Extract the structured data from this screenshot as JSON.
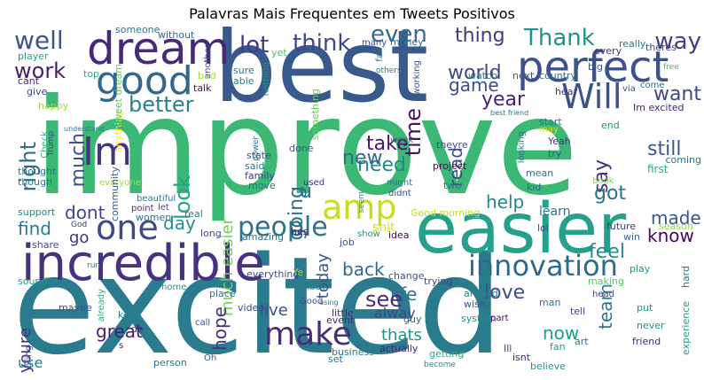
{
  "title": "Palavras Mais Frequentes em Tweets Positivos",
  "palette": [
    "#440154",
    "#46327e",
    "#365c8d",
    "#277f8e",
    "#1fa187",
    "#4ac16d",
    "#a0da39",
    "#fde725"
  ],
  "words": [
    {
      "text": "improve",
      "color": "#3bb873"
    },
    {
      "text": "excited",
      "color": "#2a7b8e"
    },
    {
      "text": "best",
      "color": "#38598c"
    },
    {
      "text": "easier",
      "color": "#25a08a"
    },
    {
      "text": "incredible",
      "color": "#46327e"
    },
    {
      "text": "perfect",
      "color": "#3b528b"
    },
    {
      "text": "dream",
      "color": "#482878"
    },
    {
      "text": "good",
      "color": "#31688e"
    },
    {
      "text": "Will",
      "color": "#3b528b"
    },
    {
      "text": "Im",
      "color": "#46337e"
    },
    {
      "text": "one",
      "color": "#3e4a89"
    },
    {
      "text": "amp",
      "color": "#c2df23"
    },
    {
      "text": "innovation",
      "color": "#30698e"
    },
    {
      "text": "make",
      "color": "#472e7c"
    },
    {
      "text": "people",
      "color": "#2c728e"
    },
    {
      "text": "well",
      "color": "#39558c"
    },
    {
      "text": "lot",
      "color": "#443983"
    },
    {
      "text": "think",
      "color": "#404688"
    },
    {
      "text": "Thank",
      "color": "#21918c"
    },
    {
      "text": "way",
      "color": "#433d84"
    },
    {
      "text": "even",
      "color": "#2f6b8e"
    },
    {
      "text": "thing",
      "color": "#443a83"
    },
    {
      "text": "work",
      "color": "#481d6f"
    },
    {
      "text": "want",
      "color": "#3e4989"
    },
    {
      "text": "better",
      "color": "#26828e"
    },
    {
      "text": "year",
      "color": "#482173"
    },
    {
      "text": "world",
      "color": "#3f4889"
    },
    {
      "text": "game",
      "color": "#3d4e8a"
    },
    {
      "text": "time",
      "color": "#471365"
    },
    {
      "text": "right",
      "color": "#2d708e"
    },
    {
      "text": "much",
      "color": "#3b528b"
    },
    {
      "text": "look",
      "color": "#22a785"
    },
    {
      "text": "going",
      "color": "#2e6e8e"
    },
    {
      "text": "much easier",
      "color": "#74d055"
    },
    {
      "text": "need",
      "color": "#24868e"
    },
    {
      "text": "take",
      "color": "#481567"
    },
    {
      "text": "read",
      "color": "#3e4a89"
    },
    {
      "text": "say",
      "color": "#472f7d"
    },
    {
      "text": "still",
      "color": "#38598c"
    },
    {
      "text": "got",
      "color": "#2b748e"
    },
    {
      "text": "help",
      "color": "#24868e"
    },
    {
      "text": "new",
      "color": "#31688e"
    },
    {
      "text": "u",
      "color": "#2c738e"
    },
    {
      "text": "shit",
      "color": "#d2e21b"
    },
    {
      "text": "dont",
      "color": "#404688"
    },
    {
      "text": "find",
      "color": "#29798e"
    },
    {
      "text": "day",
      "color": "#20928c"
    },
    {
      "text": "go",
      "color": "#46317e"
    },
    {
      "text": "made",
      "color": "#3a548c"
    },
    {
      "text": "know",
      "color": "#46075a"
    },
    {
      "text": "feel",
      "color": "#238a8d"
    },
    {
      "text": "life",
      "color": "#2d718e"
    },
    {
      "text": "back",
      "color": "#31688e"
    },
    {
      "text": "today",
      "color": "#38588c"
    },
    {
      "text": "see",
      "color": "#472c7a"
    },
    {
      "text": "love",
      "color": "#3c4f8a"
    },
    {
      "text": "team",
      "color": "#2a778e"
    },
    {
      "text": "alway",
      "color": "#3f4788"
    },
    {
      "text": "hope",
      "color": "#46307e"
    },
    {
      "text": "live",
      "color": "#3b518b"
    },
    {
      "text": "great",
      "color": "#481d6f"
    },
    {
      "text": "youre",
      "color": "#46327e"
    },
    {
      "text": "thats",
      "color": "#20928c"
    },
    {
      "text": "now",
      "color": "#1f9f88"
    },
    {
      "text": "use",
      "color": "#29788e"
    },
    {
      "text": "learn",
      "color": "#2a788e"
    },
    {
      "text": "Good morning",
      "color": "#b5de2b"
    },
    {
      "text": "future",
      "color": "#433e85"
    },
    {
      "text": "win",
      "color": "#31688e"
    },
    {
      "text": "lol",
      "color": "#3e4989"
    },
    {
      "text": "season",
      "color": "#8fd744"
    },
    {
      "text": "first",
      "color": "#27ad81"
    },
    {
      "text": "coming",
      "color": "#2a788e"
    },
    {
      "text": "hard",
      "color": "#2a788e"
    },
    {
      "text": "play",
      "color": "#21918c"
    },
    {
      "text": "head",
      "color": "#433e85"
    },
    {
      "text": "put",
      "color": "#1f9a8a"
    },
    {
      "text": "never",
      "color": "#228c8d"
    },
    {
      "text": "friend",
      "color": "#482677"
    },
    {
      "text": "experience",
      "color": "#1f9e89"
    },
    {
      "text": "tell",
      "color": "#414487"
    },
    {
      "text": "man",
      "color": "#2a788e"
    },
    {
      "text": "making",
      "color": "#52c569"
    },
    {
      "text": "art",
      "color": "#2c728e"
    },
    {
      "text": "fan",
      "color": "#1fa088"
    },
    {
      "text": "isnt",
      "color": "#482173"
    },
    {
      "text": "believe",
      "color": "#1f948c"
    },
    {
      "text": "become",
      "color": "#20938c"
    },
    {
      "text": "Ill",
      "color": "#3e4989"
    },
    {
      "text": "wish",
      "color": "#3a548c"
    },
    {
      "text": "around",
      "color": "#25848e"
    },
    {
      "text": "trying",
      "color": "#433e85"
    },
    {
      "text": "system",
      "color": "#20928c"
    },
    {
      "text": "part",
      "color": "#46085c"
    },
    {
      "text": "getting",
      "color": "#27ad81"
    },
    {
      "text": "actually",
      "color": "#481f70"
    },
    {
      "text": "guy",
      "color": "#31688e"
    },
    {
      "text": "change",
      "color": "#3b528b"
    },
    {
      "text": "idea",
      "color": "#450457"
    },
    {
      "text": "show",
      "color": "#1f948c"
    },
    {
      "text": "job",
      "color": "#3d4e8a"
    },
    {
      "text": "business",
      "color": "#2c738e"
    },
    {
      "text": "event",
      "color": "#482979"
    },
    {
      "text": "little",
      "color": "#472a7a"
    },
    {
      "text": "luck",
      "color": "#277f8e"
    },
    {
      "text": "set",
      "color": "#2e6e8e"
    },
    {
      "text": "Good",
      "color": "#3b528b"
    },
    {
      "text": "using",
      "color": "#2c728e"
    },
    {
      "text": "Ye",
      "color": "#a5db36"
    },
    {
      "text": "hes",
      "color": "#481769"
    },
    {
      "text": "amazing",
      "color": "#2d708e"
    },
    {
      "text": "everything",
      "color": "#3e4a89"
    },
    {
      "text": "person",
      "color": "#2c728e"
    },
    {
      "text": "video",
      "color": "#3f4788"
    },
    {
      "text": "place",
      "color": "#2b748e"
    },
    {
      "text": "call",
      "color": "#3a548c"
    },
    {
      "text": "keep",
      "color": "#24868e"
    },
    {
      "text": "de",
      "color": "#46307e"
    },
    {
      "text": "Oh",
      "color": "#38598c"
    },
    {
      "text": "s",
      "color": "#481769"
    },
    {
      "text": "maybe",
      "color": "#3b528b"
    },
    {
      "text": "home",
      "color": "#21918c"
    },
    {
      "text": "already",
      "color": "#26ad81"
    },
    {
      "text": "sound",
      "color": "#1fa088"
    },
    {
      "text": "run",
      "color": "#25848e"
    },
    {
      "text": "share",
      "color": "#3f4788"
    },
    {
      "text": "bring",
      "color": "#3d4e8a"
    },
    {
      "text": "support",
      "color": "#24868e"
    },
    {
      "text": "though",
      "color": "#2b748e"
    },
    {
      "text": "thought",
      "color": "#2e6e8e"
    },
    {
      "text": "God",
      "color": "#443983"
    },
    {
      "text": "women",
      "color": "#2c728e"
    },
    {
      "text": "point",
      "color": "#472d7b"
    },
    {
      "text": "let",
      "color": "#3d4d8a"
    },
    {
      "text": "real",
      "color": "#2a788e"
    },
    {
      "text": "long",
      "color": "#3e4a89"
    },
    {
      "text": "beautiful",
      "color": "#2a778e"
    },
    {
      "text": "everyone",
      "color": "#a2da37"
    },
    {
      "text": "community",
      "color": "#34608d"
    },
    {
      "text": "Check",
      "color": "#2fb47c"
    },
    {
      "text": "Trump",
      "color": "#3f4788"
    },
    {
      "text": "anything",
      "color": "#fde725"
    },
    {
      "text": "sweet dream",
      "color": "#5ec962"
    },
    {
      "text": "top",
      "color": "#27ad81"
    },
    {
      "text": "player",
      "color": "#1fa088"
    },
    {
      "text": "cant",
      "color": "#482475"
    },
    {
      "text": "give",
      "color": "#3f4788"
    },
    {
      "text": "happy",
      "color": "#9bd93c"
    },
    {
      "text": "someone",
      "color": "#2a788e"
    },
    {
      "text": "without",
      "color": "#31688e"
    },
    {
      "text": "another",
      "color": "#3d4e8a"
    },
    {
      "text": "yet",
      "color": "#4ec36b"
    },
    {
      "text": "bad",
      "color": "#a8db34"
    },
    {
      "text": "talk",
      "color": "#471063"
    },
    {
      "text": "sure",
      "color": "#2a788e"
    },
    {
      "text": "able",
      "color": "#24868e"
    },
    {
      "text": "nothing",
      "color": "#20928c"
    },
    {
      "text": "something",
      "color": "#6ccd5a"
    },
    {
      "text": "many",
      "color": "#3e4a89"
    },
    {
      "text": "money",
      "color": "#2c728e"
    },
    {
      "text": "far",
      "color": "#31688e"
    },
    {
      "text": "others",
      "color": "#2a788e"
    },
    {
      "text": "working",
      "color": "#3c4f8a"
    },
    {
      "text": "watch",
      "color": "#277f8e"
    },
    {
      "text": "next",
      "color": "#3b528b"
    },
    {
      "text": "country",
      "color": "#2e6e8e"
    },
    {
      "text": "big",
      "color": "#3d4e8a"
    },
    {
      "text": "really",
      "color": "#2a788e"
    },
    {
      "text": "theres",
      "color": "#3e4989"
    },
    {
      "text": "every",
      "color": "#46327e"
    },
    {
      "text": "free",
      "color": "#3fbc73"
    },
    {
      "text": "hear",
      "color": "#443983"
    },
    {
      "text": "via",
      "color": "#3b528b"
    },
    {
      "text": "come",
      "color": "#31688e"
    },
    {
      "text": "Im excited",
      "color": "#481f70"
    },
    {
      "text": "best friend",
      "color": "#2c728e"
    },
    {
      "text": "start",
      "color": "#2c728e"
    },
    {
      "text": "end",
      "color": "#20928c"
    },
    {
      "text": "may",
      "color": "#dde318"
    },
    {
      "text": "Yeah",
      "color": "#46327e"
    },
    {
      "text": "try",
      "color": "#3b528b"
    },
    {
      "text": "looking",
      "color": "#2a788e"
    },
    {
      "text": "week",
      "color": "#38598c"
    },
    {
      "text": "power",
      "color": "#2c728e"
    },
    {
      "text": "state",
      "color": "#3b528b"
    },
    {
      "text": "family",
      "color": "#443983"
    },
    {
      "text": "move",
      "color": "#2e6e8e"
    },
    {
      "text": "said",
      "color": "#2a788e"
    },
    {
      "text": "done",
      "color": "#38598c"
    },
    {
      "text": "used",
      "color": "#472d7b"
    },
    {
      "text": "might",
      "color": "#2c728e"
    },
    {
      "text": "didnt",
      "color": "#3b528b"
    },
    {
      "text": "seem",
      "color": "#20928c"
    },
    {
      "text": "two",
      "color": "#2a788e"
    },
    {
      "text": "theyre",
      "color": "#3e4a89"
    },
    {
      "text": "project",
      "color": "#46085c"
    },
    {
      "text": "mean",
      "color": "#2c728e"
    },
    {
      "text": "kid",
      "color": "#31688e"
    },
    {
      "text": "book",
      "color": "#7ad151"
    },
    {
      "text": "understand",
      "color": "#2a788e"
    }
  ]
}
